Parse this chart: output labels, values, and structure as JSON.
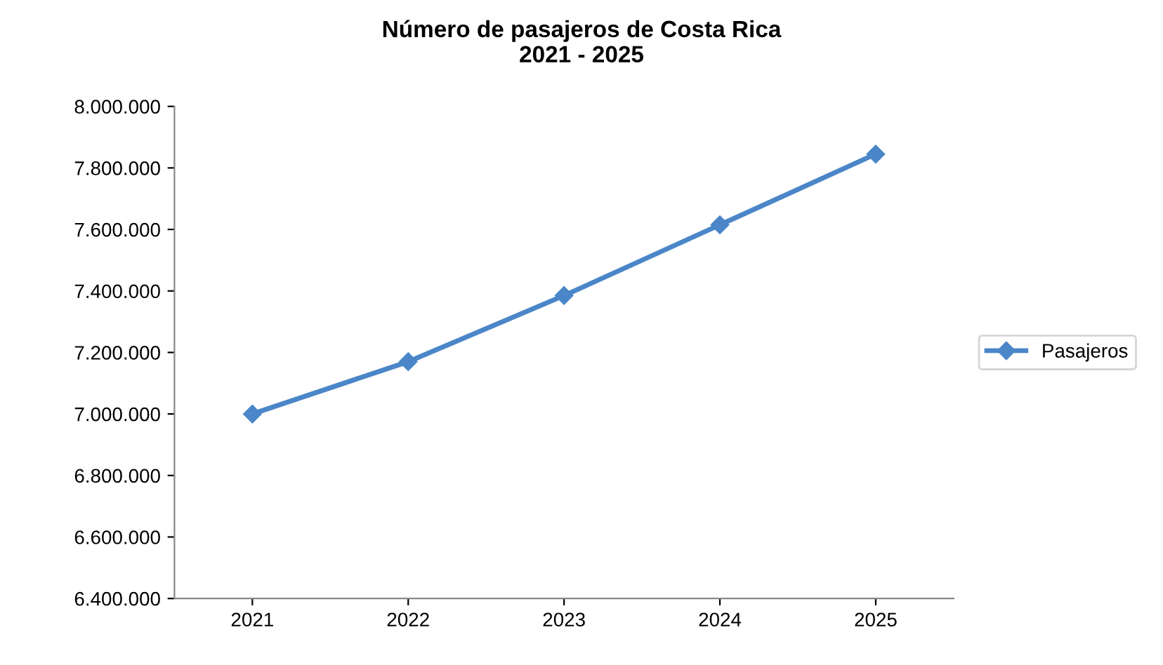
{
  "chart_data": {
    "type": "line",
    "title": "Número de pasajeros de Costa Rica\n2021 - 2025",
    "categories": [
      "2021",
      "2022",
      "2023",
      "2024",
      "2025"
    ],
    "series": [
      {
        "name": "Pasajeros",
        "color": "#4a86c8",
        "values": [
          7000000,
          7170000,
          7385000,
          7615000,
          7845000
        ]
      }
    ],
    "ylim": [
      6400000,
      8000000
    ],
    "yticks": [
      {
        "value": 6400000,
        "label": "6.400.000"
      },
      {
        "value": 6600000,
        "label": "6.600.000"
      },
      {
        "value": 6800000,
        "label": "6.800.000"
      },
      {
        "value": 7000000,
        "label": "7.000.000"
      },
      {
        "value": 7200000,
        "label": "7.200.000"
      },
      {
        "value": 7400000,
        "label": "7.400.000"
      },
      {
        "value": 7600000,
        "label": "7.600.000"
      },
      {
        "value": 7800000,
        "label": "7.800.000"
      },
      {
        "value": 8000000,
        "label": "8.000.000"
      }
    ],
    "grid": false,
    "legend": "right",
    "marker": "diamond",
    "line_style": "solid"
  }
}
